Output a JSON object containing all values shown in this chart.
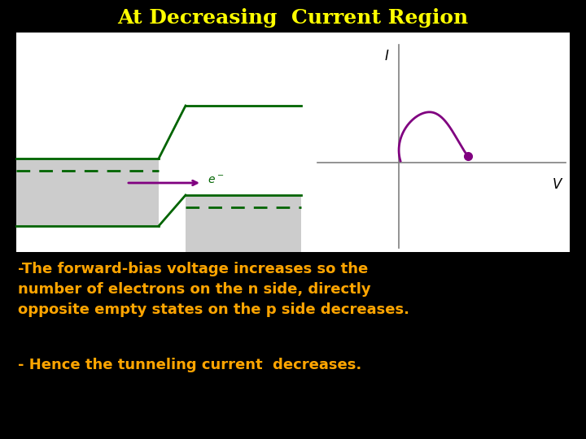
{
  "title": "At Decreasing  Current Region",
  "title_color": "#FFFF00",
  "bg_color": "#000000",
  "panel_bg": "#FFFFFF",
  "text_line1": "-The forward-bias voltage increases so the\nnumber of electrons on the n side, directly\nopposite empty states on the p side decreases.",
  "text_line2": "- Hence the tunneling current  decreases.",
  "text_color": "#FFA500",
  "green_color": "#006400",
  "dashed_color": "#006400",
  "gray_fill": "#CCCCCC",
  "arrow_color": "#800080",
  "dot_color": "#800080",
  "curve_color": "#800080"
}
